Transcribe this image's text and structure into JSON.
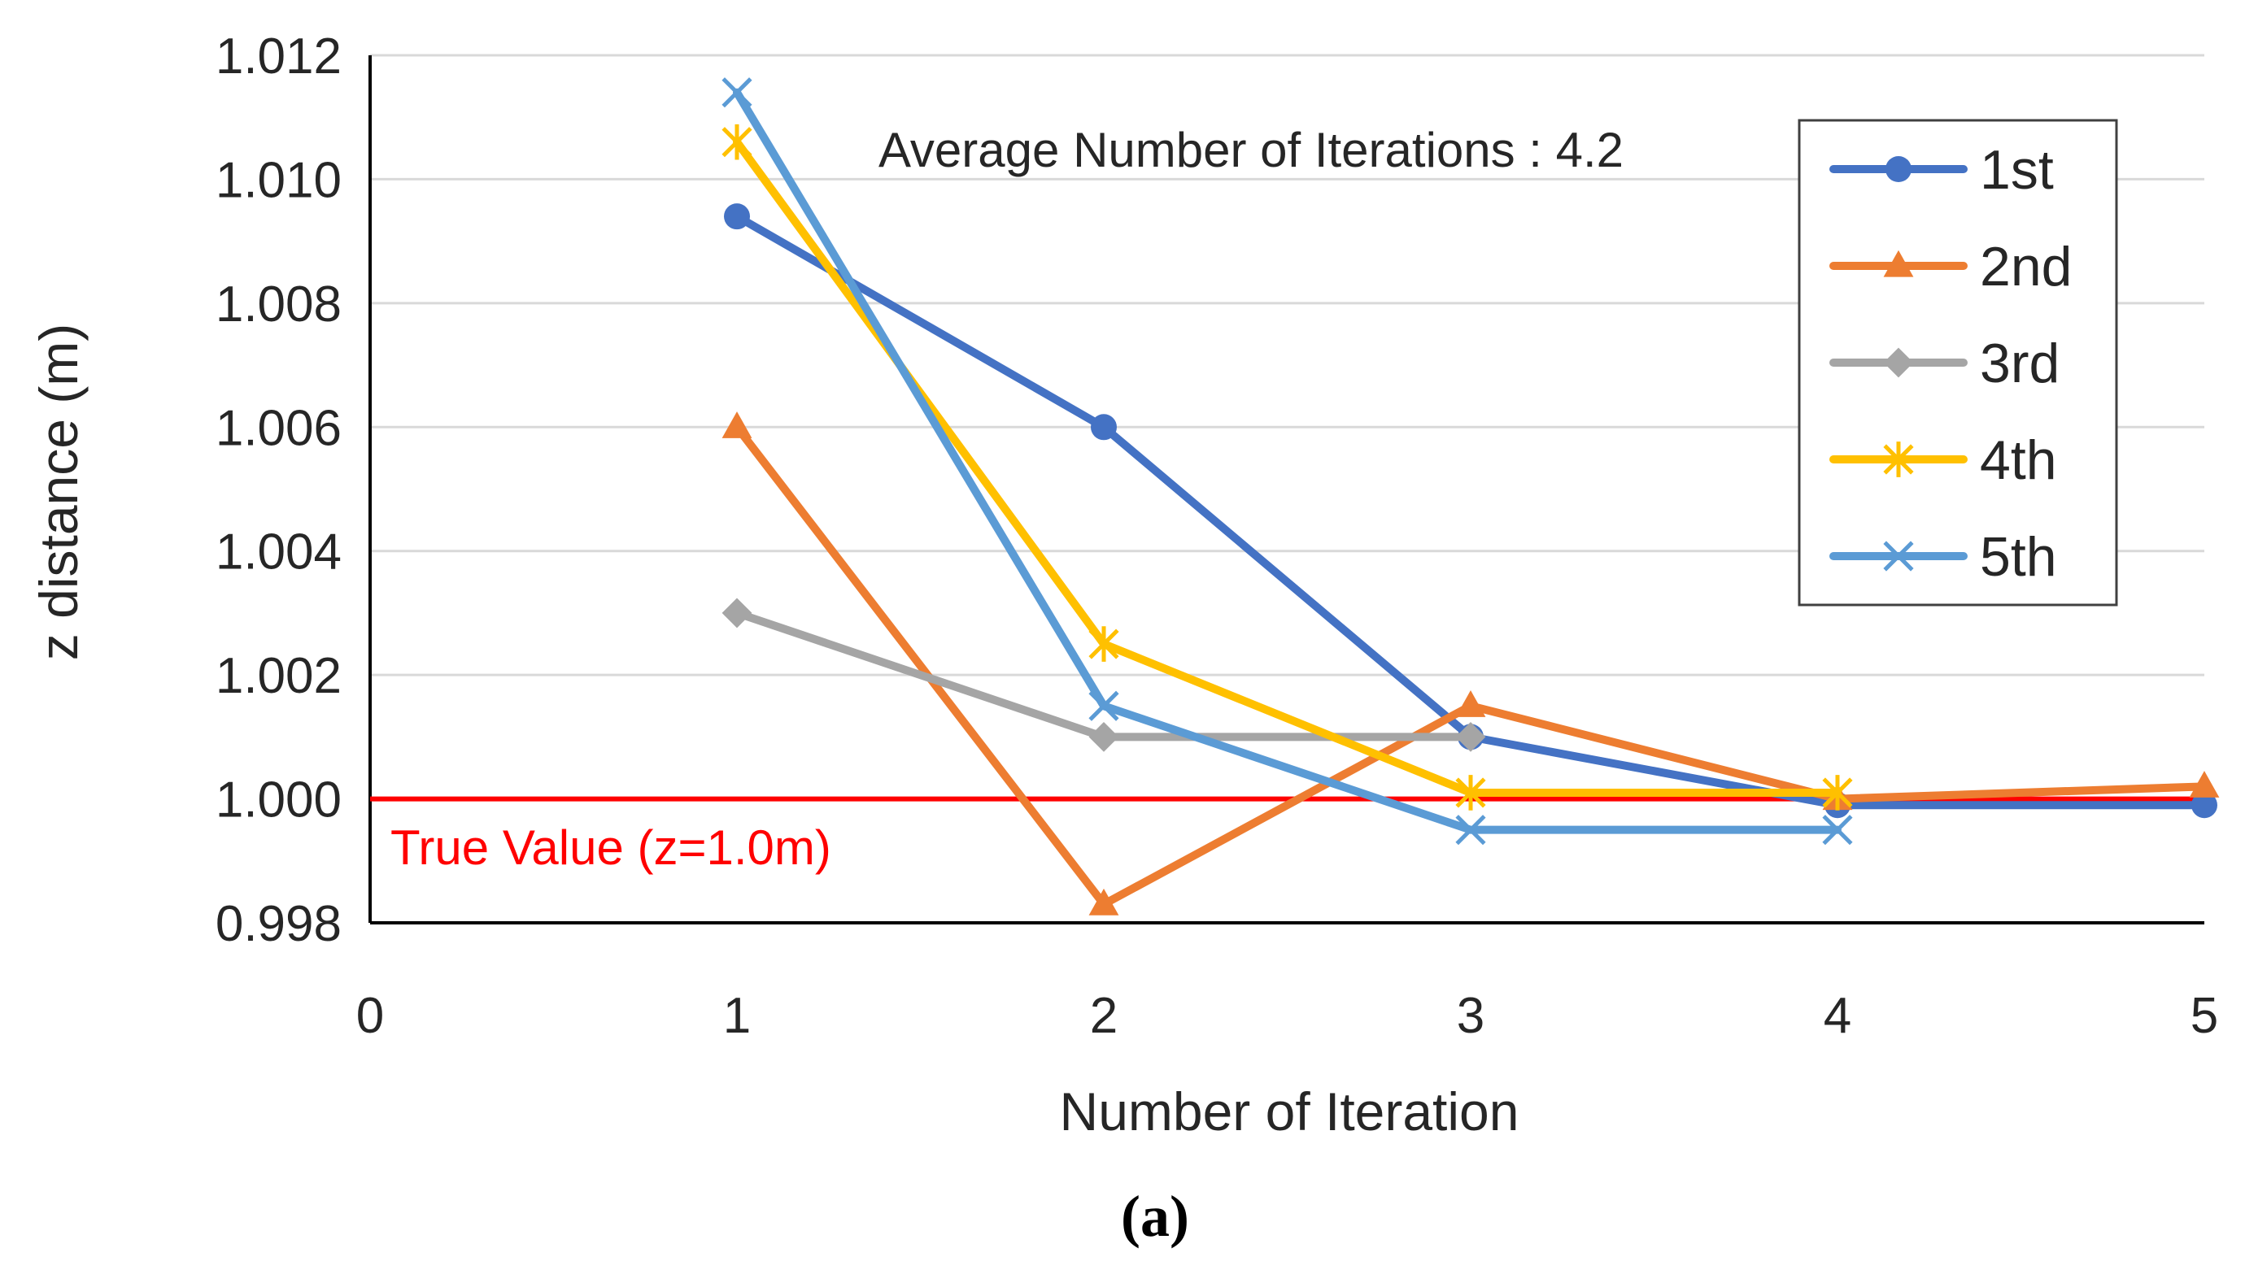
{
  "chart_data": {
    "type": "line",
    "title": "",
    "xlabel": "Number of Iteration",
    "ylabel": "z distance (m)",
    "caption": "(a)",
    "annotation": "Average Number of Iterations : 4.2",
    "reference_line": {
      "value": 1.0,
      "label": "True Value (z=1.0m)",
      "color": "#ff0000"
    },
    "xlim": [
      0,
      5
    ],
    "ylim": [
      0.998,
      1.012
    ],
    "x_ticks": [
      "0",
      "1",
      "2",
      "3",
      "4",
      "5"
    ],
    "y_ticks": [
      "0.998",
      "1.000",
      "1.002",
      "1.004",
      "1.006",
      "1.008",
      "1.010",
      "1.012"
    ],
    "grid": true,
    "legend_position": "top-right",
    "series": [
      {
        "name": "1st",
        "color": "#4472c4",
        "marker": "circle",
        "x": [
          1,
          2,
          3,
          4,
          5
        ],
        "values": [
          1.0094,
          1.006,
          1.001,
          0.9999,
          0.9999
        ]
      },
      {
        "name": "2nd",
        "color": "#ed7d31",
        "marker": "triangle",
        "x": [
          1,
          2,
          3,
          4,
          5
        ],
        "values": [
          1.006,
          0.9983,
          1.0015,
          1.0,
          1.0002
        ]
      },
      {
        "name": "3rd",
        "color": "#a5a5a5",
        "marker": "diamond",
        "x": [
          1,
          2,
          3
        ],
        "values": [
          1.003,
          1.001,
          1.001
        ]
      },
      {
        "name": "4th",
        "color": "#ffc000",
        "marker": "star",
        "x": [
          1,
          2,
          3,
          4
        ],
        "values": [
          1.0106,
          1.0025,
          1.0001,
          1.0001
        ]
      },
      {
        "name": "5th",
        "color": "#5b9bd5",
        "marker": "x",
        "x": [
          1,
          2,
          3,
          4
        ],
        "values": [
          1.0114,
          1.0015,
          0.9995,
          0.9995
        ]
      }
    ]
  }
}
